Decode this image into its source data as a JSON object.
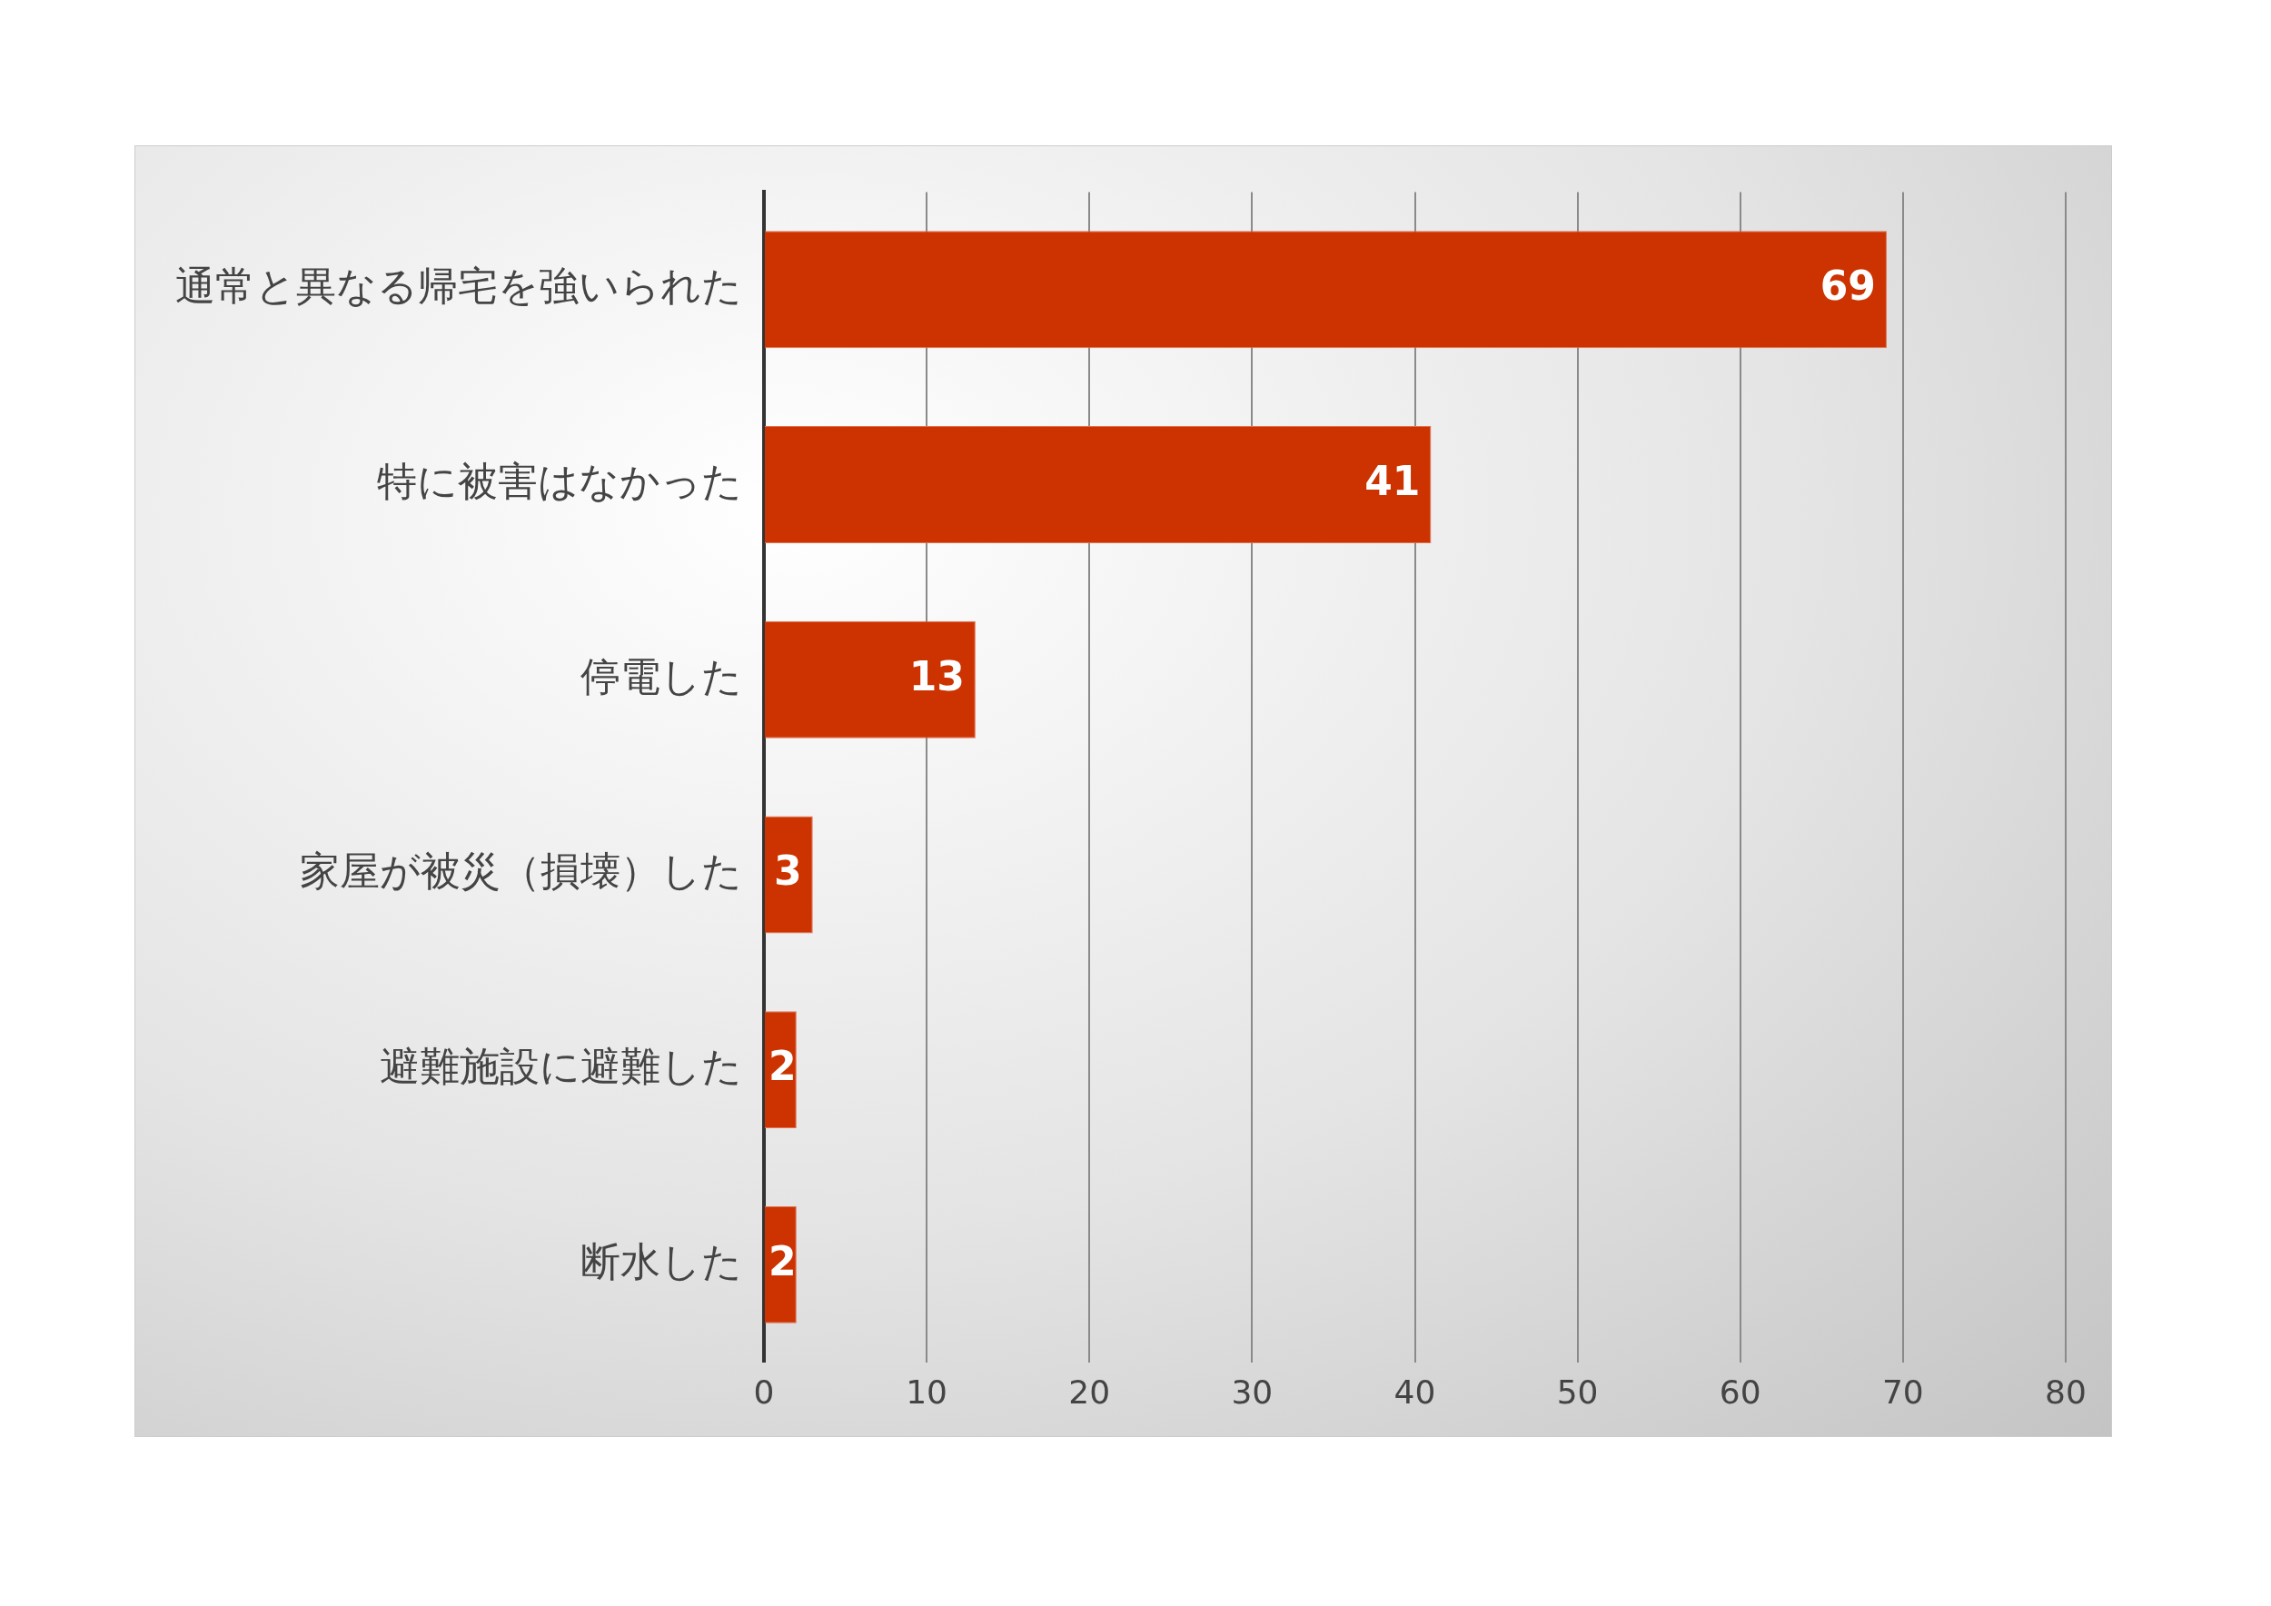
{
  "chart_data": {
    "type": "bar",
    "orientation": "horizontal",
    "categories": [
      "通常と異なる帰宅を強いられた",
      "特に被害はなかった",
      "停電した",
      "家屋が被災（損壊）した",
      "避難施設に避難した",
      "断水した"
    ],
    "values": [
      69,
      41,
      13,
      3,
      2,
      2
    ],
    "color": "#cc3300",
    "xlim": [
      0,
      80
    ],
    "xticks": [
      0,
      10,
      20,
      30,
      40,
      50,
      60,
      70,
      80
    ],
    "grid": "x",
    "data_labels": true,
    "legend": false
  }
}
